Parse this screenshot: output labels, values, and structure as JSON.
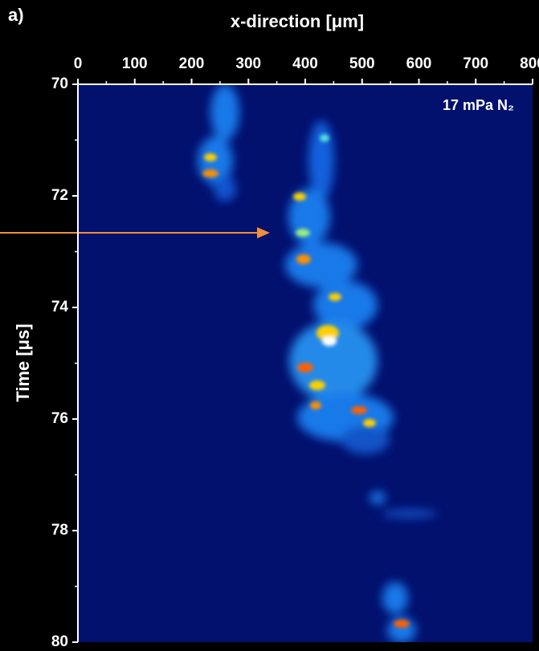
{
  "panel_label": "a)",
  "chart_data": {
    "type": "heatmap",
    "title": "x-direction [μm]",
    "y_label": "Time [μs]",
    "annotation": "17 mPa N₂",
    "xlim": [
      0,
      800
    ],
    "xticks": [
      0,
      100,
      200,
      300,
      400,
      500,
      600,
      700,
      800
    ],
    "ylim": [
      70,
      80
    ],
    "yticks": [
      70,
      72,
      74,
      76,
      78,
      80
    ],
    "y_inverted": true,
    "background": "#02106e",
    "axis_color": "#ffffff"
  }
}
